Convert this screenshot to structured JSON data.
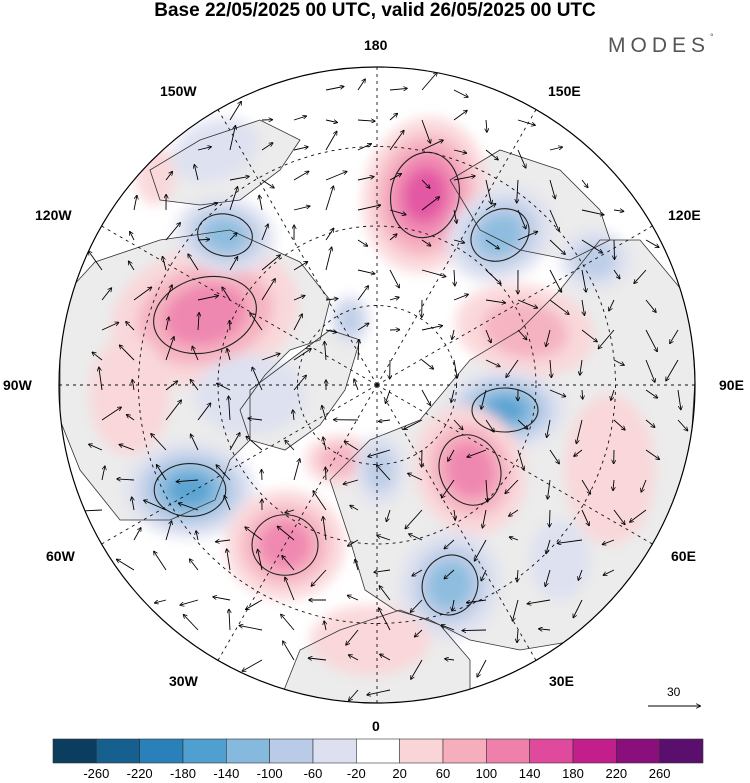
{
  "title": "Base 22/05/2025 00 UTC, valid 26/05/2025 00 UTC",
  "logo": {
    "text": "MODES",
    "mark": "°"
  },
  "longitude_labels": {
    "n180": "180",
    "e150": "150E",
    "e120": "120E",
    "e90": "90E",
    "e60": "60E",
    "e30": "30E",
    "s0": "0",
    "w30": "30W",
    "w60": "60W",
    "w90": "90W",
    "w120": "120W",
    "w150": "150W"
  },
  "vector_key": {
    "label": "30"
  },
  "colorbar": {
    "labels": [
      "-260",
      "-220",
      "-180",
      "-140",
      "-100",
      "-60",
      "-20",
      "20",
      "60",
      "100",
      "140",
      "180",
      "220",
      "260"
    ],
    "colors": [
      "#0b3d5e",
      "#15608f",
      "#2a80b8",
      "#4f9fd0",
      "#86b9de",
      "#b9cbe6",
      "#dde0f0",
      "#ffffff",
      "#fad5d8",
      "#f6aebd",
      "#ef7fab",
      "#e04a9c",
      "#c21f8c",
      "#8a0f7c",
      "#5a0f6e"
    ]
  },
  "colors": {
    "land": "#ececec",
    "background": "#ffffff"
  }
}
